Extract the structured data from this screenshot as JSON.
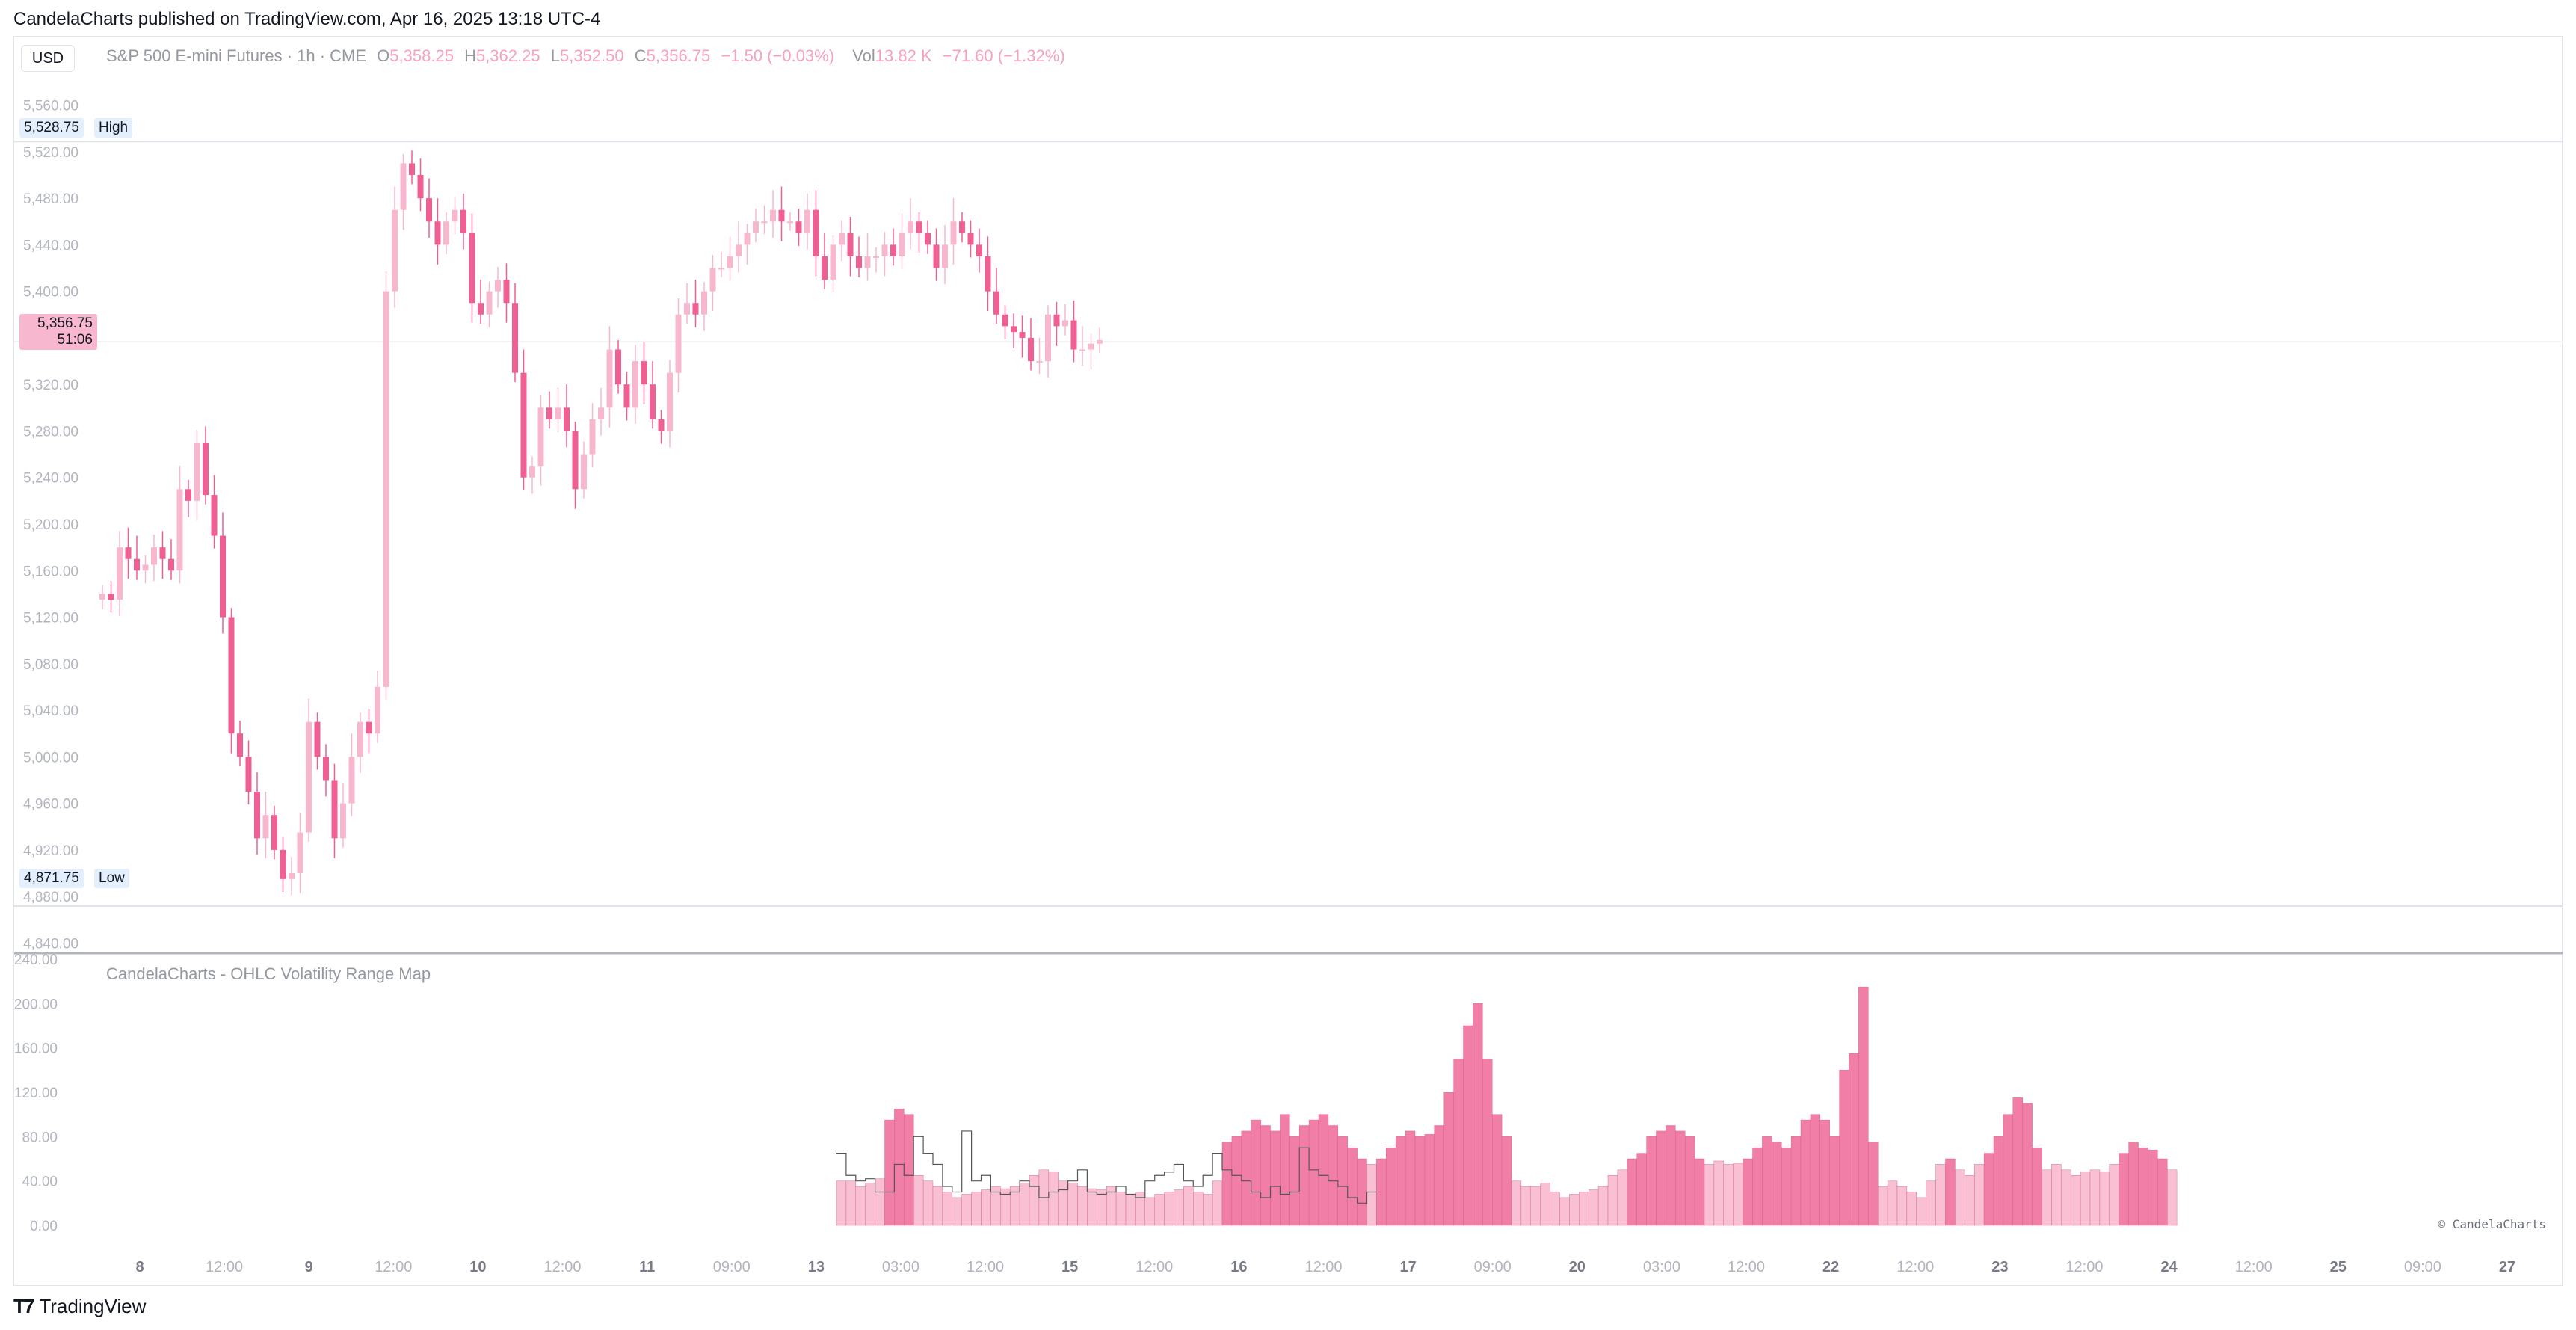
{
  "header": {
    "published_line": "CandelaCharts published on TradingView.com, Apr 16, 2025 13:18 UTC-4"
  },
  "toolbar": {
    "currency_button": "USD"
  },
  "legend": {
    "symbol": "S&P 500 E-mini Futures · 1h · CME",
    "o_label": "O",
    "o_value": "5,358.25",
    "h_label": "H",
    "h_value": "5,362.25",
    "l_label": "L",
    "l_value": "5,352.50",
    "c_label": "C",
    "c_value": "5,356.75",
    "change": "−1.50 (−0.03%)",
    "vol_label": "Vol",
    "vol_value": "13.82 K",
    "vol_change": "−71.60 (−1.32%)"
  },
  "markers": {
    "high_value": "5,528.75",
    "high_label": "High",
    "low_value": "4,871.75",
    "low_label": "Low",
    "last_value": "5,356.75",
    "countdown": "51:06"
  },
  "indicator": {
    "name": "CandelaCharts - OHLC Volatility Range Map"
  },
  "watermark": "© CandelaCharts",
  "brand": {
    "logo": "T7",
    "name": "TradingView"
  },
  "colors": {
    "bull": "#f7b8cf",
    "bear": "#ef5f93",
    "accent": "#f48fb1",
    "hist_strong": "#f17ea6",
    "hist_light": "#f9bfd3",
    "outline": "#555555"
  },
  "chart_data": [
    {
      "type": "candlestick",
      "title": "S&P 500 E-mini Futures · 1h · CME",
      "ylim": [
        4830,
        5570
      ],
      "y_ticks": [
        "5,560.00",
        "5,520.00",
        "5,480.00",
        "5,440.00",
        "5,400.00",
        "5,360.00",
        "5,320.00",
        "5,280.00",
        "5,240.00",
        "5,200.00",
        "5,160.00",
        "5,120.00",
        "5,080.00",
        "5,040.00",
        "5,000.00",
        "4,960.00",
        "4,920.00",
        "4,880.00",
        "4,840.00"
      ],
      "x_tick_labels": [
        "8",
        "12:00",
        "9",
        "12:00",
        "10",
        "12:00",
        "11",
        "09:00",
        "13",
        "03:00",
        "12:00",
        "15",
        "12:00",
        "16",
        "12:00",
        "17",
        "09:00",
        "20",
        "03:00",
        "12:00",
        "22",
        "12:00",
        "23",
        "12:00",
        "24",
        "12:00",
        "25",
        "09:00",
        "27"
      ],
      "closes": [
        5140,
        5135,
        5180,
        5170,
        5160,
        5165,
        5180,
        5170,
        5160,
        5230,
        5220,
        5270,
        5225,
        5190,
        5120,
        5020,
        5000,
        4970,
        4930,
        4950,
        4920,
        4895,
        4900,
        4935,
        5030,
        5000,
        4980,
        4930,
        4960,
        5000,
        5030,
        5020,
        5060,
        5400,
        5470,
        5510,
        5500,
        5480,
        5460,
        5440,
        5460,
        5470,
        5450,
        5390,
        5380,
        5400,
        5410,
        5390,
        5330,
        5240,
        5250,
        5300,
        5290,
        5300,
        5280,
        5230,
        5260,
        5290,
        5300,
        5350,
        5320,
        5300,
        5340,
        5320,
        5290,
        5280,
        5330,
        5380,
        5390,
        5380,
        5400,
        5420,
        5420,
        5430,
        5440,
        5450,
        5460,
        5460,
        5470,
        5460,
        5460,
        5450,
        5470,
        5430,
        5410,
        5440,
        5450,
        5430,
        5420,
        5430,
        5430,
        5440,
        5430,
        5450,
        5460,
        5450,
        5440,
        5420,
        5440,
        5460,
        5450,
        5440,
        5430,
        5400,
        5380,
        5370,
        5365,
        5360,
        5340,
        5340,
        5380,
        5370,
        5375,
        5350,
        5350,
        5355,
        5358
      ]
    },
    {
      "type": "bar",
      "title": "CandelaCharts - OHLC Volatility Range Map",
      "ylim": [
        0,
        240
      ],
      "y_ticks": [
        "240.00",
        "200.00",
        "160.00",
        "120.00",
        "80.00",
        "40.00",
        "0.00"
      ],
      "values": [
        40,
        40,
        35,
        38,
        42,
        95,
        105,
        100,
        45,
        40,
        35,
        30,
        25,
        28,
        30,
        32,
        35,
        33,
        35,
        38,
        45,
        50,
        48,
        40,
        38,
        35,
        33,
        32,
        35,
        30,
        28,
        30,
        25,
        28,
        30,
        32,
        35,
        30,
        28,
        40,
        75,
        80,
        85,
        95,
        90,
        85,
        100,
        80,
        90,
        95,
        100,
        90,
        80,
        70,
        60,
        55,
        60,
        70,
        80,
        85,
        80,
        82,
        90,
        120,
        150,
        180,
        200,
        150,
        100,
        80,
        40,
        35,
        35,
        38,
        30,
        25,
        28,
        30,
        32,
        35,
        45,
        50,
        60,
        65,
        80,
        85,
        90,
        85,
        80,
        60,
        55,
        58,
        55,
        56,
        60,
        70,
        80,
        75,
        70,
        80,
        95,
        100,
        95,
        80,
        140,
        155,
        215,
        75,
        35,
        40,
        35,
        30,
        25,
        40,
        55,
        60,
        50,
        45,
        55,
        65,
        80,
        100,
        115,
        110,
        70,
        50,
        55,
        50,
        45,
        48,
        50,
        48,
        55,
        65,
        75,
        70,
        68,
        60,
        50
      ],
      "overlay_start_index": 0,
      "overlay_values": [
        65,
        45,
        40,
        42,
        30,
        30,
        55,
        45,
        80,
        65,
        55,
        35,
        30,
        85,
        40,
        45,
        30,
        28,
        30,
        40,
        35,
        25,
        30,
        32,
        40,
        50,
        30,
        28,
        30,
        35,
        28,
        25,
        40,
        45,
        48,
        55,
        40,
        35,
        45,
        65,
        50,
        45,
        40,
        30,
        25,
        35,
        28,
        30,
        70,
        50,
        45,
        40,
        35,
        25,
        20,
        30
      ]
    }
  ]
}
